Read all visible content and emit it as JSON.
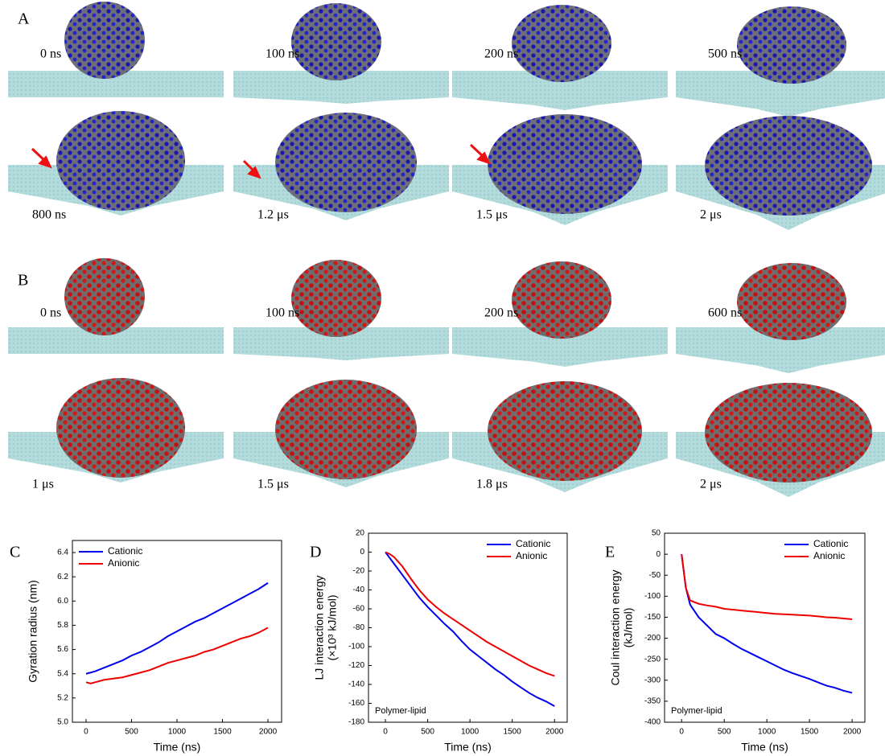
{
  "snapshots": [
    {
      "panel": "A",
      "rows": [
        [
          "0 ns",
          "100 ns",
          "200 ns",
          "500 ns"
        ],
        [
          "800 ns",
          "1.2 μs",
          "1.5 μs",
          "2 μs"
        ]
      ]
    },
    {
      "panel": "B",
      "rows": [
        [
          "0 ns",
          "100 ns",
          "200 ns",
          "600 ns"
        ],
        [
          "1 μs",
          "1.5 μs",
          "1.8 μs",
          "2 μs"
        ]
      ]
    }
  ],
  "chart_data": [
    {
      "type": "line",
      "panel": "C",
      "ylabel": [
        "Gyration radius (nm)"
      ],
      "xlabel": "Time (ns)",
      "legend": "upper left",
      "x": [
        0,
        50,
        100,
        200,
        300,
        400,
        500,
        600,
        700,
        800,
        900,
        1000,
        1100,
        1200,
        1300,
        1400,
        1500,
        1600,
        1700,
        1800,
        1900,
        2000
      ],
      "series": [
        {
          "name": "Cationic",
          "color": "#0000ee",
          "values": [
            5.4,
            5.41,
            5.42,
            5.45,
            5.48,
            5.51,
            5.55,
            5.58,
            5.62,
            5.66,
            5.71,
            5.75,
            5.79,
            5.83,
            5.86,
            5.9,
            5.94,
            5.98,
            6.02,
            6.06,
            6.1,
            6.15
          ]
        },
        {
          "name": "Anionic",
          "color": "#ee0000",
          "values": [
            5.33,
            5.32,
            5.33,
            5.35,
            5.36,
            5.37,
            5.39,
            5.41,
            5.43,
            5.46,
            5.49,
            5.51,
            5.53,
            5.55,
            5.58,
            5.6,
            5.63,
            5.66,
            5.69,
            5.71,
            5.74,
            5.78
          ]
        }
      ],
      "xlim": [
        -150,
        2150
      ],
      "xticks": [
        0,
        500,
        1000,
        1500,
        2000
      ],
      "ylim": [
        5.0,
        6.5
      ],
      "yticks": [
        {
          "value": 5,
          "label": "5.0"
        },
        5.2,
        5.4,
        5.6,
        5.8,
        {
          "value": 6,
          "label": "6.0"
        },
        6.2,
        6.4
      ]
    },
    {
      "type": "line",
      "panel": "D",
      "ylabel": [
        "LJ interaction energy",
        "(×10³ kJ/mol)"
      ],
      "xlabel": "Time (ns)",
      "legend": "upper right",
      "annotation": "Polymer-lipid",
      "x": [
        0,
        50,
        100,
        200,
        300,
        400,
        500,
        600,
        700,
        800,
        900,
        1000,
        1100,
        1200,
        1300,
        1400,
        1500,
        1600,
        1700,
        1800,
        1900,
        2000
      ],
      "series": [
        {
          "name": "Cationic",
          "color": "#0000ee",
          "values": [
            0,
            -6,
            -12,
            -24,
            -36,
            -48,
            -58,
            -67,
            -76,
            -84,
            -94,
            -103,
            -110,
            -117,
            -124,
            -130,
            -137,
            -143,
            -149,
            -154,
            -158,
            -163
          ]
        },
        {
          "name": "Anionic",
          "color": "#ee0000",
          "values": [
            0,
            -2,
            -5,
            -15,
            -28,
            -40,
            -50,
            -58,
            -65,
            -71,
            -77,
            -83,
            -89,
            -95,
            -100,
            -105,
            -110,
            -115,
            -120,
            -124,
            -128,
            -131
          ]
        }
      ],
      "xlim": [
        -200,
        2150
      ],
      "xticks": [
        0,
        500,
        1000,
        1500,
        2000
      ],
      "ylim": [
        -180,
        20
      ],
      "yticks": [
        -180,
        -160,
        -140,
        -120,
        -100,
        -80,
        -60,
        -40,
        -20,
        0,
        20
      ]
    },
    {
      "type": "line",
      "panel": "E",
      "ylabel": [
        "Coul interaction energy",
        "(kJ/mol)"
      ],
      "xlabel": "Time (ns)",
      "legend": "upper right",
      "annotation": "Polymer-lipid",
      "x": [
        0,
        50,
        100,
        200,
        300,
        400,
        500,
        600,
        700,
        800,
        900,
        1000,
        1100,
        1200,
        1300,
        1400,
        1500,
        1600,
        1700,
        1800,
        1900,
        2000
      ],
      "series": [
        {
          "name": "Cationic",
          "color": "#0000ee",
          "values": [
            0,
            -80,
            -120,
            -150,
            -170,
            -190,
            -200,
            -213,
            -225,
            -235,
            -245,
            -255,
            -265,
            -275,
            -283,
            -290,
            -297,
            -305,
            -313,
            -318,
            -325,
            -330
          ]
        },
        {
          "name": "Anionic",
          "color": "#ee0000",
          "values": [
            0,
            -80,
            -110,
            -118,
            -122,
            -125,
            -130,
            -132,
            -134,
            -136,
            -138,
            -140,
            -142,
            -143,
            -144,
            -145,
            -146,
            -148,
            -150,
            -151,
            -153,
            -155
          ]
        }
      ],
      "xlim": [
        -200,
        2150
      ],
      "xticks": [
        0,
        500,
        1000,
        1500,
        2000
      ],
      "ylim": [
        -400,
        50
      ],
      "yticks": [
        -400,
        -350,
        -300,
        -250,
        -200,
        -150,
        -100,
        -50,
        0,
        50
      ]
    }
  ]
}
